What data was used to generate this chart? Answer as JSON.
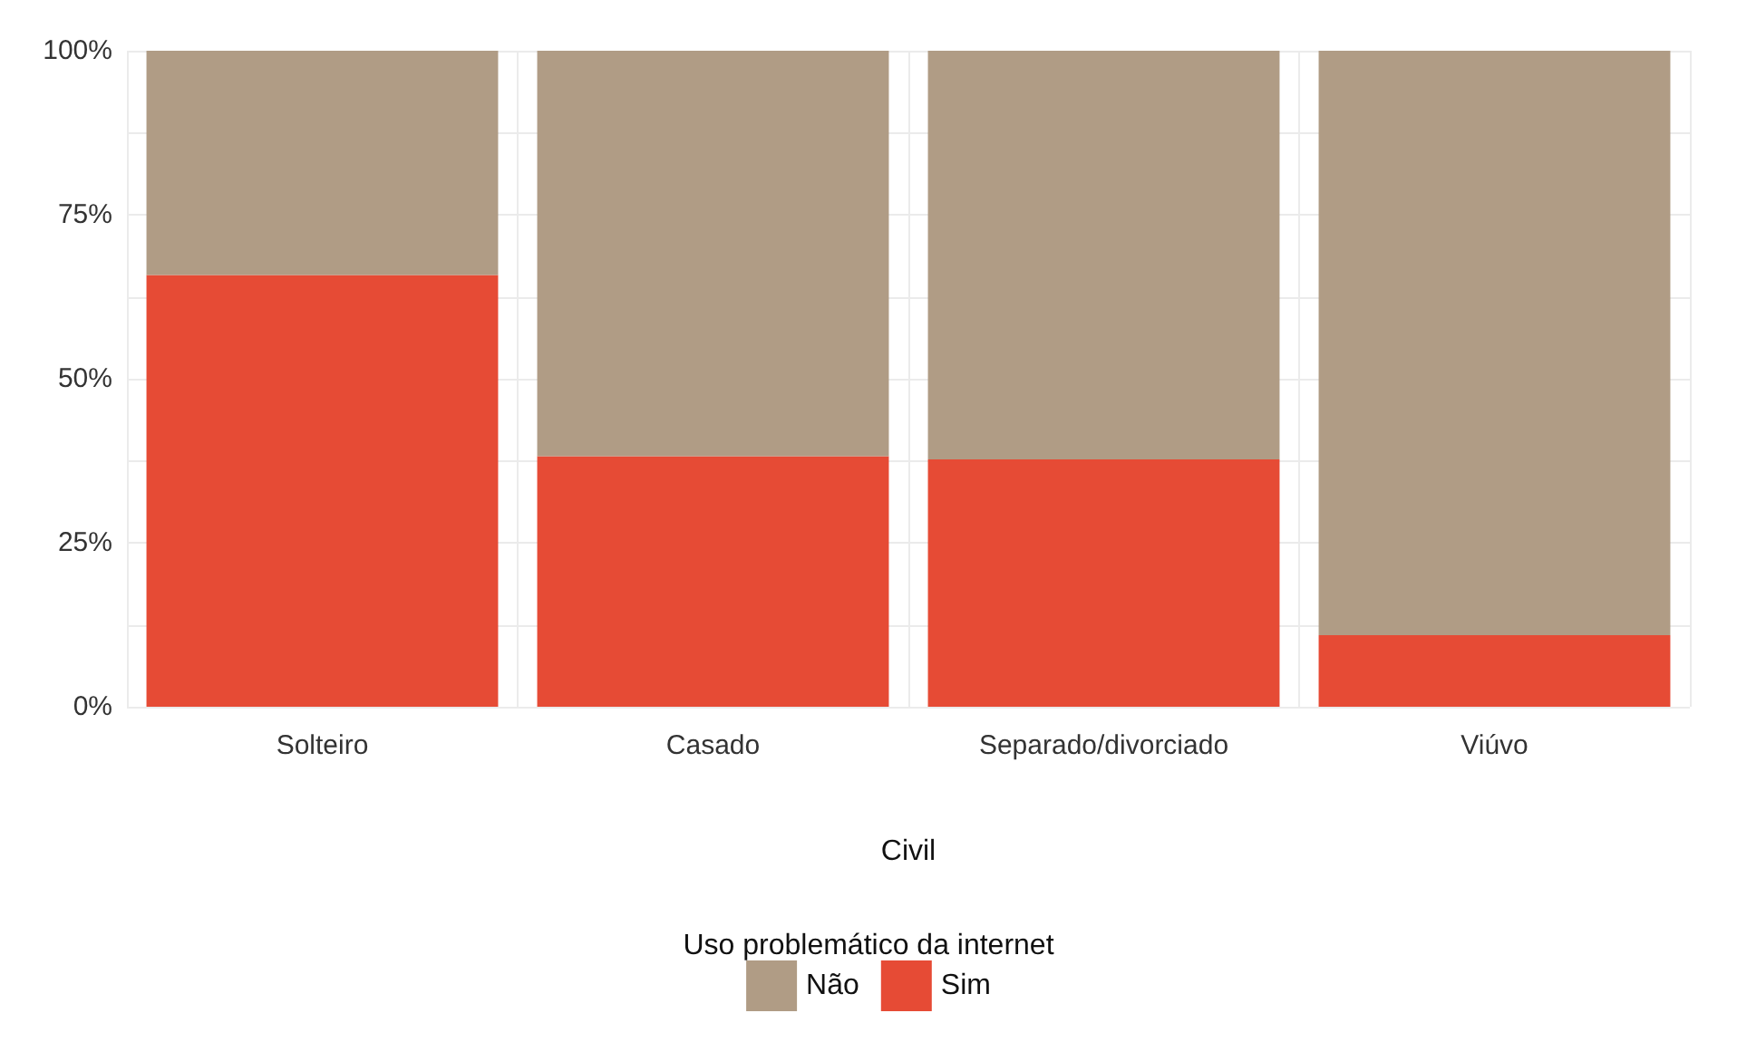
{
  "chart_data": {
    "type": "bar",
    "stacked": true,
    "xlabel": "Civil",
    "legend_title": "Uso problemático da internet",
    "legend": "bottom",
    "grid": true,
    "categories": [
      "Solteiro",
      "Casado",
      "Separado/divorciado",
      "Viúvo"
    ],
    "series": [
      {
        "name": "Sim",
        "color": "#e64b35",
        "values": [
          65.8,
          38.2,
          37.7,
          10.9
        ]
      },
      {
        "name": "Não",
        "color": "#b09c85",
        "values": [
          34.2,
          61.8,
          62.3,
          89.1
        ]
      }
    ],
    "ylim": [
      0,
      100
    ],
    "yticks": [
      {
        "value": 0,
        "label": "0%"
      },
      {
        "value": 12.5,
        "label": null
      },
      {
        "value": 25,
        "label": "25%"
      },
      {
        "value": 37.5,
        "label": null
      },
      {
        "value": 50,
        "label": "50%"
      },
      {
        "value": 62.5,
        "label": null
      },
      {
        "value": 75,
        "label": "75%"
      },
      {
        "value": 87.5,
        "label": null
      },
      {
        "value": 100,
        "label": "100%"
      }
    ]
  }
}
